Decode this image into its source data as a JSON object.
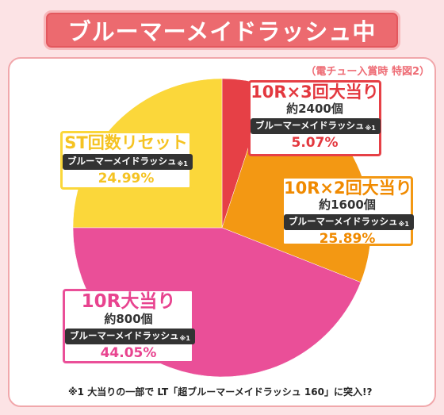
{
  "title": "ブルーマーメイドラッシュ中",
  "source_note": "（電チュー入賞時 特図2）",
  "footnote": "※1 大当りの一部で LT「超ブルーマーメイドラッシュ 160」に突入!?",
  "chart_data": {
    "type": "pie",
    "start": "12 o'clock, clockwise",
    "slices": [
      {
        "label": "10R×3回大当り",
        "sub": "約2400個",
        "rush_label": "ブルーマーメイドラッシュ",
        "note_mark": "※1",
        "value": 5.07,
        "value_text": "5.07%",
        "color": "#e64046",
        "text_color": "#e3383f"
      },
      {
        "label": "10R×2回大当り",
        "sub": "約1600個",
        "rush_label": "ブルーマーメイドラッシュ",
        "note_mark": "※1",
        "value": 25.89,
        "value_text": "25.89%",
        "color": "#f39813",
        "text_color": "#f08a00"
      },
      {
        "label": "10R大当り",
        "sub": "約800個",
        "rush_label": "ブルーマーメイドラッシュ",
        "note_mark": "※1",
        "value": 44.05,
        "value_text": "44.05%",
        "color": "#ea4f98",
        "text_color": "#e8438f"
      },
      {
        "label": "ST回数リセット",
        "sub": "",
        "rush_label": "ブルーマーメイドラッシュ",
        "note_mark": "※1",
        "value": 24.99,
        "value_text": "24.99%",
        "color": "#fbd73a",
        "text_color": "#f5c322"
      }
    ]
  }
}
